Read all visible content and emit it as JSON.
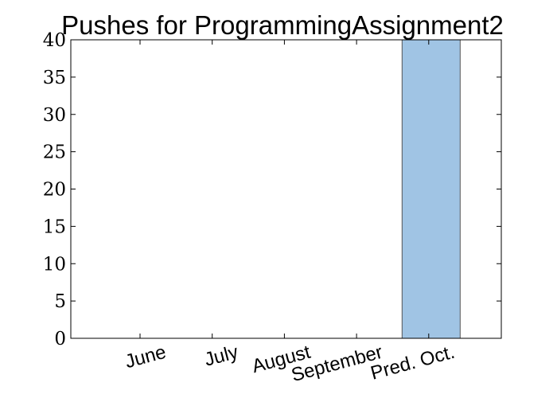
{
  "chart_data": {
    "type": "bar",
    "title": "Pushes for ProgrammingAssignment2",
    "xlabel": "",
    "ylabel": "",
    "categories": [
      "June",
      "July",
      "August",
      "September",
      "Pred. Oct."
    ],
    "values": [
      0,
      0,
      0,
      0,
      40
    ],
    "ylim": [
      0,
      40
    ],
    "yticks": [
      0,
      5,
      10,
      15,
      20,
      25,
      30,
      35,
      40
    ],
    "grid": false,
    "colors": {
      "bar": "#a0c4e4",
      "bar_edge": "#555555",
      "axis": "#000000"
    }
  }
}
